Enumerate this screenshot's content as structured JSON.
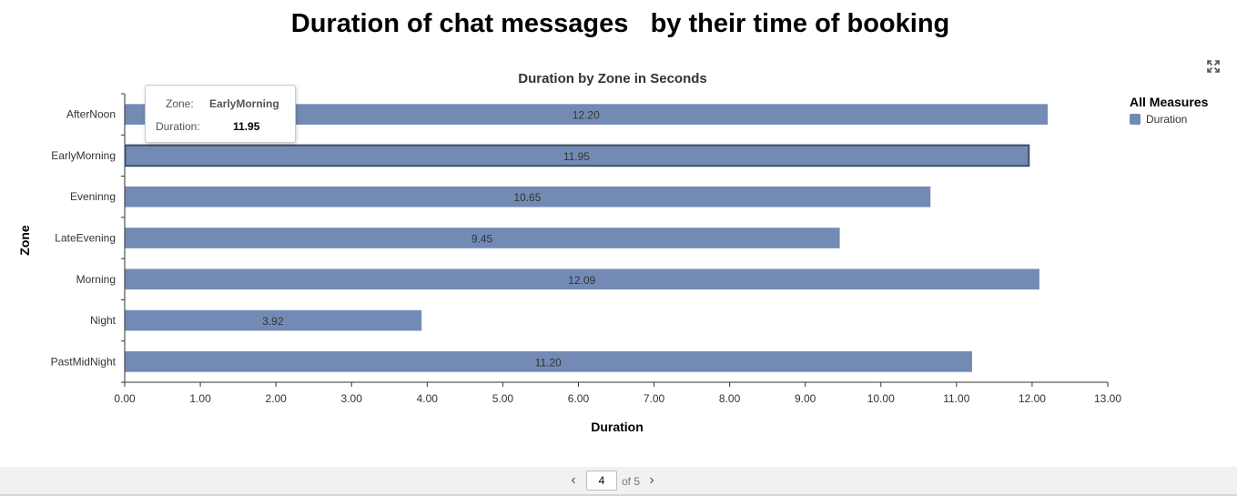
{
  "page": {
    "title": "Duration of chat messages   by their time of booking"
  },
  "chart_data": {
    "type": "bar",
    "orientation": "horizontal",
    "title": "Duration by Zone in Seconds",
    "xlabel": "Duration",
    "ylabel": "Zone",
    "categories": [
      "AfterNoon",
      "EarlyMorning",
      "Eveninng",
      "LateEvening",
      "Morning",
      "Night",
      "PastMidNight"
    ],
    "series": [
      {
        "name": "Duration",
        "values": [
          12.2,
          11.95,
          10.65,
          9.45,
          12.09,
          3.92,
          11.2
        ]
      }
    ],
    "xlim": [
      0,
      13
    ],
    "x_ticks": [
      "0.00",
      "1.00",
      "2.00",
      "3.00",
      "4.00",
      "5.00",
      "6.00",
      "7.00",
      "8.00",
      "9.00",
      "10.00",
      "11.00",
      "12.00",
      "13.00"
    ],
    "data_labels": [
      "12.20",
      "11.95",
      "10.65",
      "9.45",
      "12.09",
      "3.92",
      "11.20"
    ],
    "highlighted_category": "EarlyMorning",
    "bar_color": "#738bb4",
    "highlight_border_color": "#3e4e66",
    "grid": false,
    "legend": {
      "title": "All Measures",
      "items": [
        "Duration"
      ],
      "position": "right"
    }
  },
  "tooltip": {
    "zone_key": "Zone:",
    "zone_value": "EarlyMorning",
    "duration_key": "Duration:",
    "duration_value": "11.95"
  },
  "toolbar": {
    "expand_icon": "expand-icon"
  },
  "pager": {
    "current_page": "4",
    "of_label": "of 5",
    "prev_icon": "chevron-left-icon",
    "next_icon": "chevron-right-icon"
  }
}
